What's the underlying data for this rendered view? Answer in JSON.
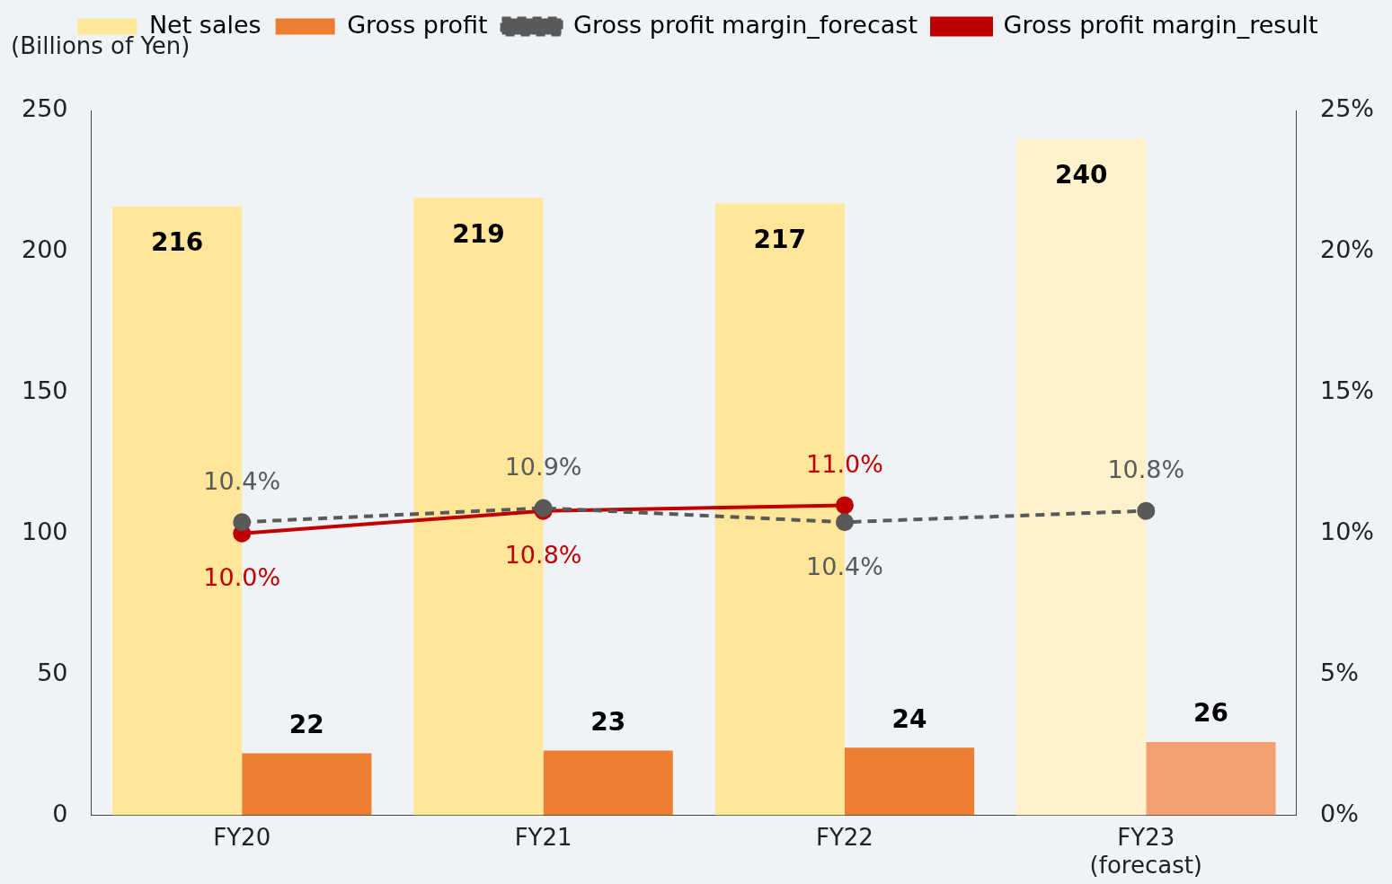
{
  "chart_data": {
    "type": "bar",
    "ylabel": "(Billions of Yen)",
    "categories": [
      "FY20",
      "FY21",
      "FY22",
      "FY23\n(forecast)"
    ],
    "series": [
      {
        "name": "Net sales",
        "color": "#ffe699",
        "colors": [
          "#ffe699",
          "#ffe699",
          "#ffe699",
          "#fff1c9"
        ],
        "values": [
          216,
          219,
          217,
          240
        ],
        "value_labels": [
          "216",
          "219",
          "217",
          "240"
        ]
      },
      {
        "name": "Gross profit",
        "color": "#ed7d31",
        "colors": [
          "#ed7d31",
          "#ed7d31",
          "#ed7d31",
          "#f2a070"
        ],
        "values": [
          22,
          23,
          24,
          26
        ],
        "value_labels": [
          "22",
          "23",
          "24",
          "26"
        ]
      },
      {
        "name": "Gross profit margin_forecast",
        "type": "line",
        "axis": "y2",
        "color": "#595959",
        "line_style": "dashed",
        "values": [
          10.4,
          10.9,
          10.4,
          10.8
        ],
        "value_labels": [
          "10.4%",
          "10.9%",
          "10.4%",
          "10.8%"
        ]
      },
      {
        "name": "Gross profit margin_result",
        "type": "line",
        "axis": "y2",
        "color": "#c00000",
        "line_style": "solid",
        "values": [
          10.0,
          10.8,
          11.0,
          null
        ],
        "value_labels": [
          "10.0%",
          "10.8%",
          "11.0%",
          null
        ]
      }
    ],
    "ylim": [
      0,
      250
    ],
    "yticks": [
      0,
      50,
      100,
      150,
      200,
      250
    ],
    "y2lim": [
      0,
      25
    ],
    "y2ticks": [
      {
        "value": 0,
        "label": "0%"
      },
      {
        "value": 5,
        "label": "5%"
      },
      {
        "value": 10,
        "label": "10%"
      },
      {
        "value": 15,
        "label": "15%"
      },
      {
        "value": 20,
        "label": "20%"
      },
      {
        "value": 25,
        "label": "25%"
      }
    ],
    "grid": false,
    "legend": "top",
    "marker": "circle"
  }
}
